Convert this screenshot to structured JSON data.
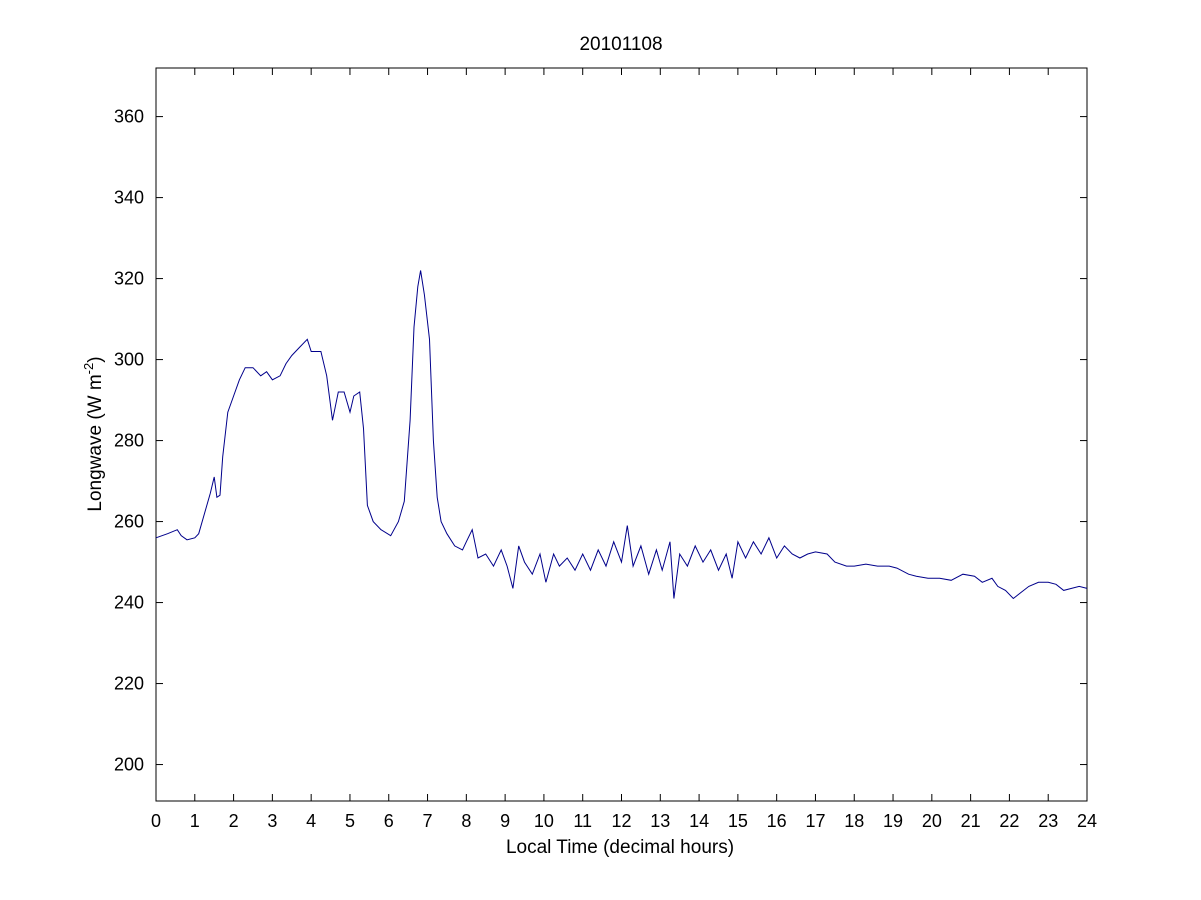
{
  "chart_data": {
    "type": "line",
    "title": "20101108",
    "xlabel": "Local Time (decimal hours)",
    "ylabel_main": "Longwave (W m",
    "ylabel_sup": "-2",
    "ylabel_close": ")",
    "xlim": [
      0,
      24
    ],
    "ylim": [
      191,
      372
    ],
    "xticks": [
      0,
      1,
      2,
      3,
      4,
      5,
      6,
      7,
      8,
      9,
      10,
      11,
      12,
      13,
      14,
      15,
      16,
      17,
      18,
      19,
      20,
      21,
      22,
      23,
      24
    ],
    "yticks": [
      200,
      220,
      240,
      260,
      280,
      300,
      320,
      340,
      360
    ],
    "grid": false,
    "line_color": "#00008b",
    "series": [
      {
        "points": [
          [
            0.0,
            256
          ],
          [
            0.3,
            257
          ],
          [
            0.55,
            258
          ],
          [
            0.65,
            256.5
          ],
          [
            0.8,
            255.5
          ],
          [
            1.0,
            256
          ],
          [
            1.1,
            257
          ],
          [
            1.25,
            262
          ],
          [
            1.4,
            267
          ],
          [
            1.5,
            271
          ],
          [
            1.57,
            266
          ],
          [
            1.65,
            266.5
          ],
          [
            1.72,
            276
          ],
          [
            1.85,
            287
          ],
          [
            2.0,
            291
          ],
          [
            2.15,
            295
          ],
          [
            2.3,
            298
          ],
          [
            2.5,
            298
          ],
          [
            2.7,
            296
          ],
          [
            2.85,
            297
          ],
          [
            3.0,
            295
          ],
          [
            3.2,
            296
          ],
          [
            3.35,
            299
          ],
          [
            3.5,
            301
          ],
          [
            3.7,
            303
          ],
          [
            3.9,
            305
          ],
          [
            4.0,
            302
          ],
          [
            4.25,
            302
          ],
          [
            4.4,
            296
          ],
          [
            4.55,
            285
          ],
          [
            4.7,
            292
          ],
          [
            4.85,
            292
          ],
          [
            5.0,
            287
          ],
          [
            5.1,
            291
          ],
          [
            5.25,
            292
          ],
          [
            5.35,
            283
          ],
          [
            5.45,
            264
          ],
          [
            5.6,
            260
          ],
          [
            5.8,
            258
          ],
          [
            6.05,
            256.5
          ],
          [
            6.25,
            260
          ],
          [
            6.4,
            265
          ],
          [
            6.55,
            285
          ],
          [
            6.65,
            308
          ],
          [
            6.75,
            318
          ],
          [
            6.82,
            322
          ],
          [
            6.92,
            316
          ],
          [
            7.05,
            305
          ],
          [
            7.15,
            280
          ],
          [
            7.25,
            266
          ],
          [
            7.35,
            260
          ],
          [
            7.5,
            257
          ],
          [
            7.7,
            254
          ],
          [
            7.9,
            253
          ],
          [
            8.0,
            255
          ],
          [
            8.15,
            258
          ],
          [
            8.3,
            251
          ],
          [
            8.5,
            252
          ],
          [
            8.7,
            249
          ],
          [
            8.9,
            253
          ],
          [
            9.05,
            249
          ],
          [
            9.2,
            243.5
          ],
          [
            9.35,
            254
          ],
          [
            9.5,
            250
          ],
          [
            9.7,
            247
          ],
          [
            9.9,
            252
          ],
          [
            10.05,
            245
          ],
          [
            10.25,
            252
          ],
          [
            10.4,
            249
          ],
          [
            10.6,
            251
          ],
          [
            10.8,
            248
          ],
          [
            11.0,
            252
          ],
          [
            11.2,
            248
          ],
          [
            11.4,
            253
          ],
          [
            11.6,
            249
          ],
          [
            11.8,
            255
          ],
          [
            12.0,
            250
          ],
          [
            12.15,
            259
          ],
          [
            12.3,
            249
          ],
          [
            12.5,
            254
          ],
          [
            12.7,
            247
          ],
          [
            12.9,
            253
          ],
          [
            13.05,
            248
          ],
          [
            13.25,
            255
          ],
          [
            13.35,
            241
          ],
          [
            13.5,
            252
          ],
          [
            13.7,
            249
          ],
          [
            13.9,
            254
          ],
          [
            14.1,
            250
          ],
          [
            14.3,
            253
          ],
          [
            14.5,
            248
          ],
          [
            14.7,
            252
          ],
          [
            14.85,
            246
          ],
          [
            15.0,
            255
          ],
          [
            15.2,
            251
          ],
          [
            15.4,
            255
          ],
          [
            15.6,
            252
          ],
          [
            15.8,
            256
          ],
          [
            16.0,
            251
          ],
          [
            16.2,
            254
          ],
          [
            16.4,
            252
          ],
          [
            16.6,
            251
          ],
          [
            16.8,
            252
          ],
          [
            17.0,
            252.5
          ],
          [
            17.3,
            252
          ],
          [
            17.5,
            250
          ],
          [
            17.8,
            249
          ],
          [
            18.0,
            249
          ],
          [
            18.3,
            249.5
          ],
          [
            18.6,
            249
          ],
          [
            18.9,
            249
          ],
          [
            19.1,
            248.5
          ],
          [
            19.4,
            247
          ],
          [
            19.6,
            246.5
          ],
          [
            19.9,
            246
          ],
          [
            20.2,
            246
          ],
          [
            20.5,
            245.5
          ],
          [
            20.8,
            247
          ],
          [
            21.1,
            246.5
          ],
          [
            21.3,
            245
          ],
          [
            21.55,
            246
          ],
          [
            21.7,
            244
          ],
          [
            21.9,
            243
          ],
          [
            22.1,
            241
          ],
          [
            22.3,
            242.5
          ],
          [
            22.5,
            244
          ],
          [
            22.75,
            245
          ],
          [
            23.0,
            245
          ],
          [
            23.2,
            244.5
          ],
          [
            23.4,
            243
          ],
          [
            23.6,
            243.5
          ],
          [
            23.8,
            244
          ],
          [
            24.0,
            243.5
          ]
        ]
      }
    ]
  }
}
